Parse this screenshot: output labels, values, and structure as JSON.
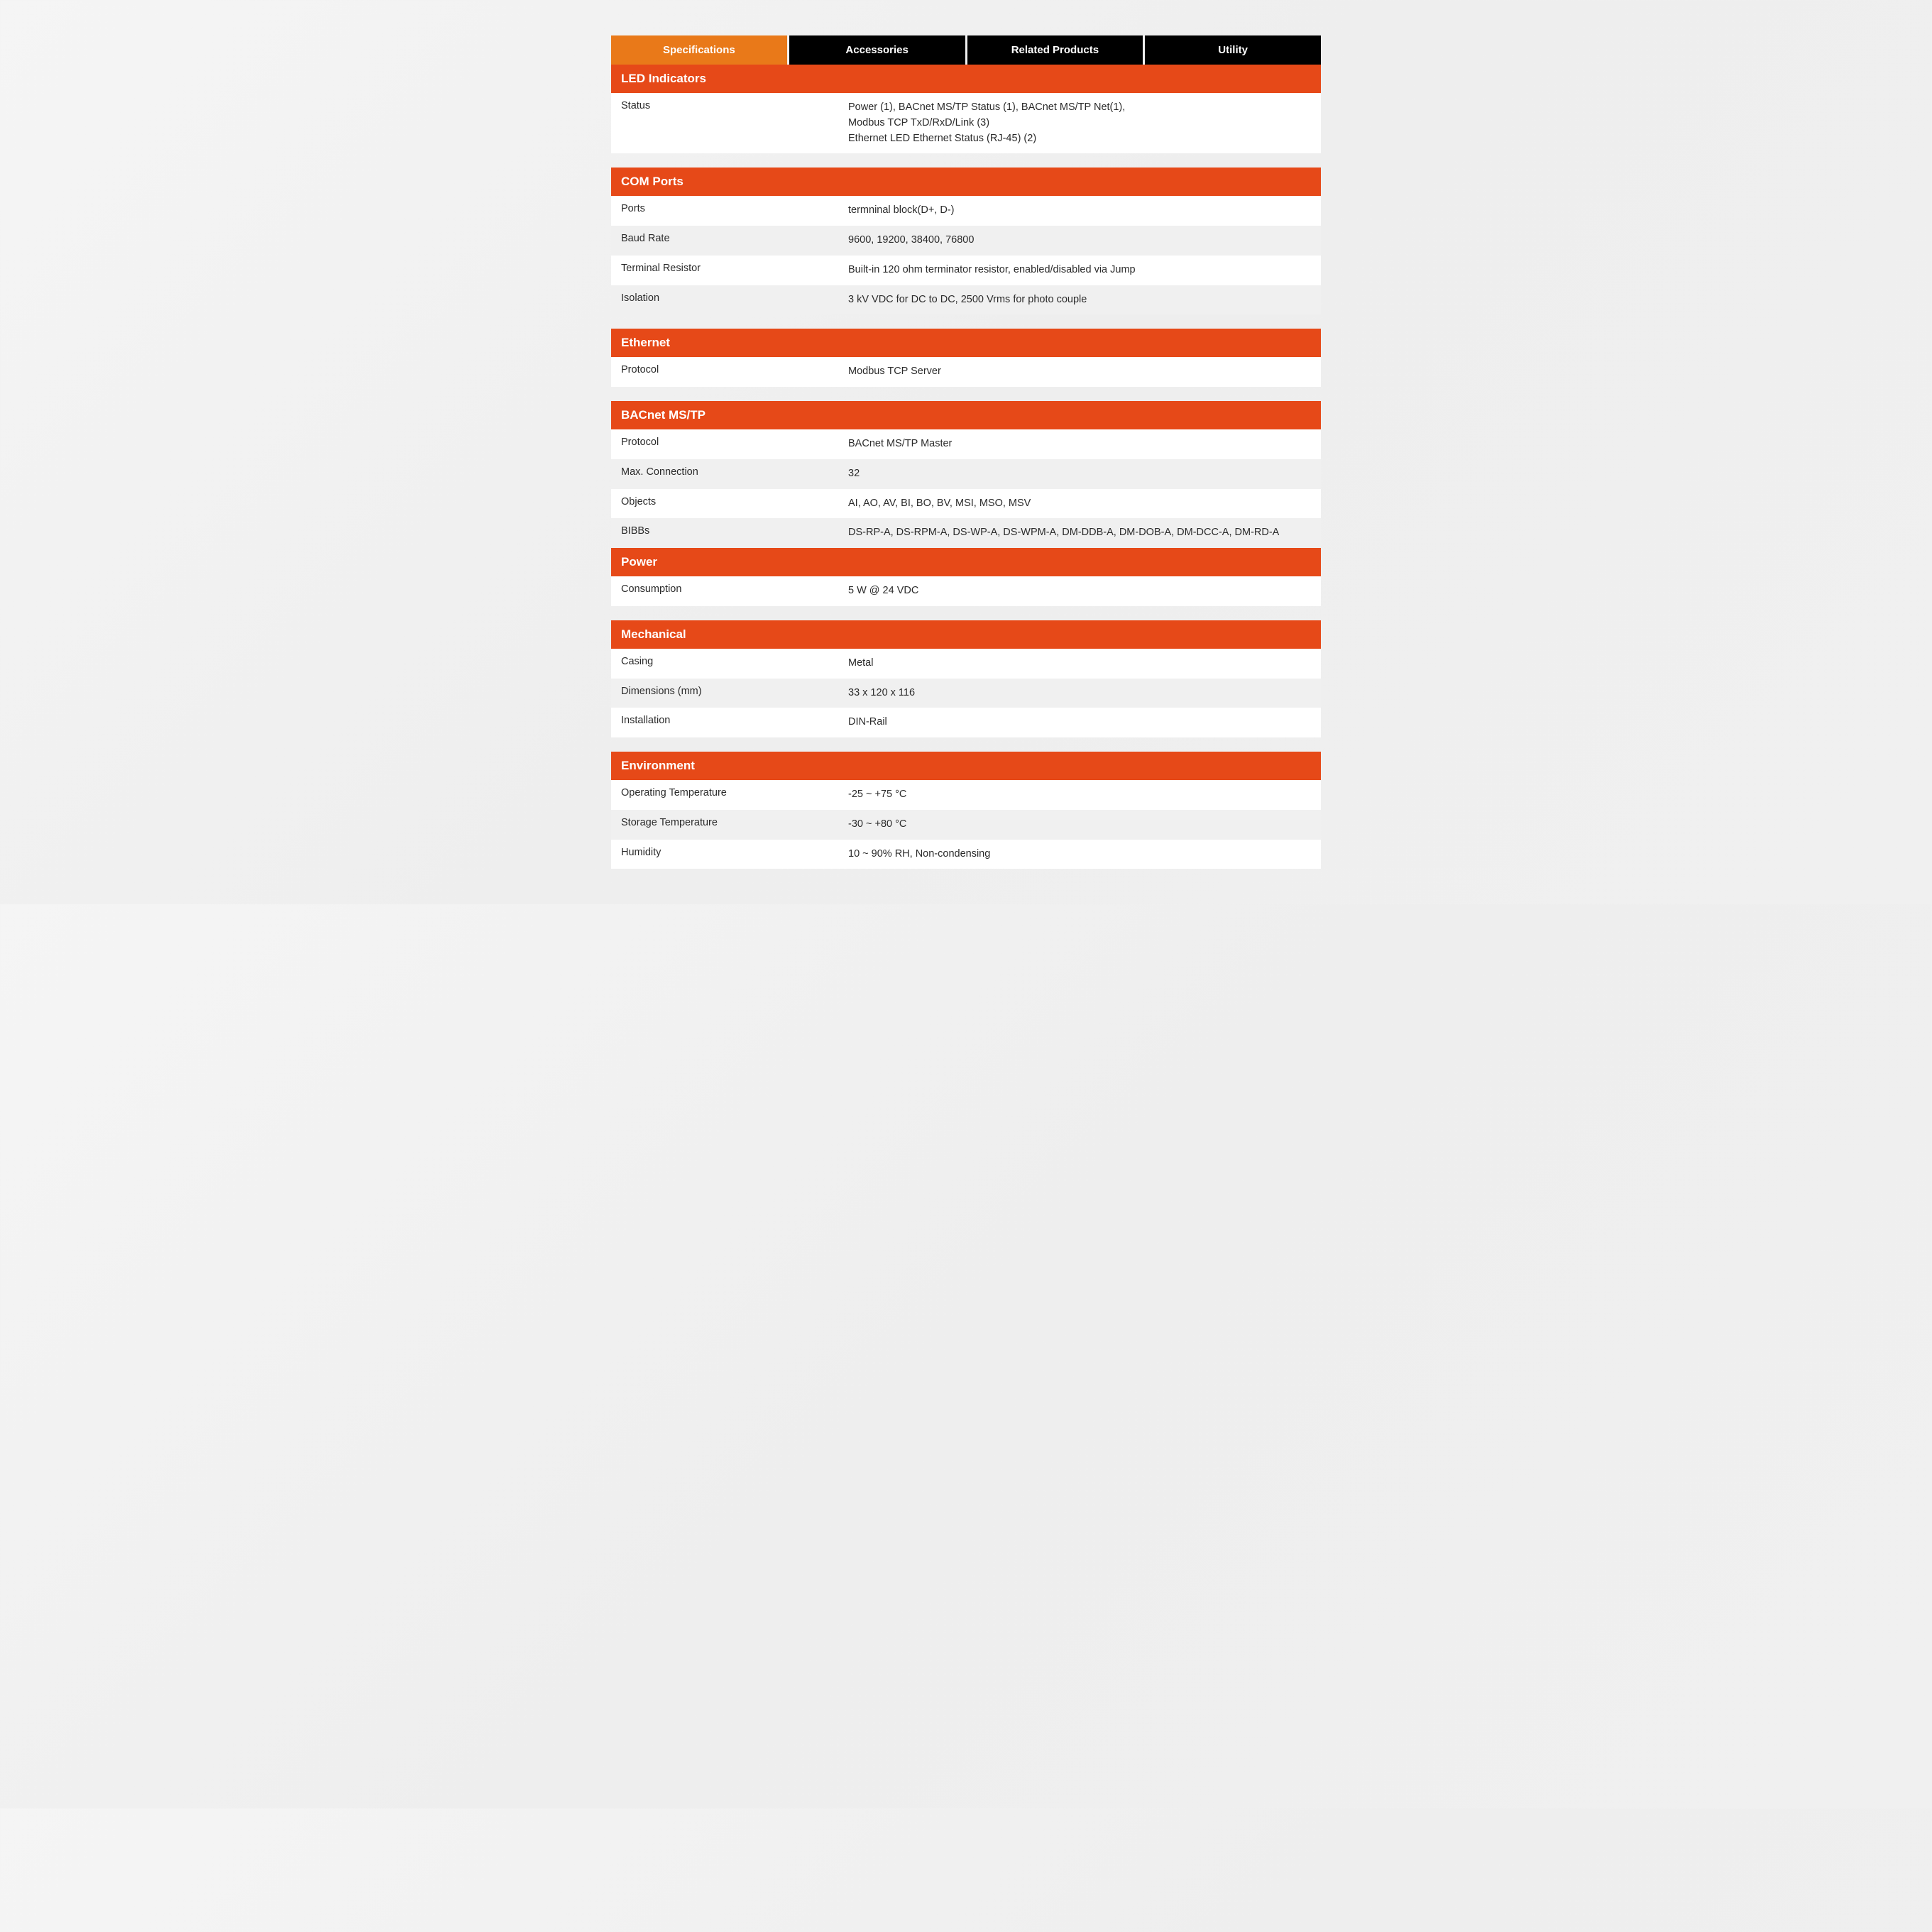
{
  "colors": {
    "tab_active": "#e97919",
    "tab_inactive": "#000000",
    "section_header": "#e64918",
    "row_white": "#ffffff",
    "row_gray": "#f0f0f0",
    "text": "#2b2b2b",
    "tab_text": "#ffffff"
  },
  "tabs": [
    {
      "label": "Specifications",
      "active": true
    },
    {
      "label": "Accessories",
      "active": false
    },
    {
      "label": "Related Products",
      "active": false
    },
    {
      "label": "Utility",
      "active": false
    }
  ],
  "sections": [
    {
      "title": "LED Indicators",
      "gap_after": true,
      "rows": [
        {
          "label": "Status",
          "value": "Power (1), BACnet MS/TP Status (1), BACnet MS/TP Net(1),\nModbus TCP TxD/RxD/Link (3)\nEthernet LED Ethernet Status (RJ-45) (2)",
          "bg": "white"
        }
      ]
    },
    {
      "title": "COM Ports",
      "gap_after": true,
      "rows": [
        {
          "label": "Ports",
          "value": "termninal block(D+, D-)",
          "bg": "white"
        },
        {
          "label": "Baud Rate",
          "value": "9600, 19200, 38400, 76800",
          "bg": "gray"
        },
        {
          "label": "Terminal Resistor",
          "value": "Built-in 120 ohm terminator resistor, enabled/disabled via Jump",
          "bg": "white"
        },
        {
          "label": "Isolation",
          "value": "3 kV VDC for DC to DC, 2500 Vrms for photo couple",
          "bg": "gray"
        }
      ]
    },
    {
      "title": "Ethernet",
      "gap_after": true,
      "rows": [
        {
          "label": "Protocol",
          "value": "Modbus TCP Server",
          "bg": "white"
        }
      ]
    },
    {
      "title": "BACnet MS/TP",
      "gap_after": false,
      "rows": [
        {
          "label": "Protocol",
          "value": "BACnet MS/TP Master",
          "bg": "white"
        },
        {
          "label": "Max. Connection",
          "value": "32",
          "bg": "gray"
        },
        {
          "label": "Objects",
          "value": "AI, AO, AV, BI, BO, BV, MSI, MSO, MSV",
          "bg": "white"
        },
        {
          "label": "BIBBs",
          "value": "DS-RP-A, DS-RPM-A, DS-WP-A, DS-WPM-A, DM-DDB-A, DM-DOB-A, DM-DCC-A, DM-RD-A",
          "bg": "gray"
        }
      ]
    },
    {
      "title": "Power",
      "gap_after": true,
      "rows": [
        {
          "label": "Consumption",
          "value": " 5 W @ 24 VDC",
          "bg": "white"
        }
      ]
    },
    {
      "title": "Mechanical",
      "gap_after": true,
      "rows": [
        {
          "label": "Casing",
          "value": "Metal",
          "bg": "white"
        },
        {
          "label": "Dimensions (mm)",
          "value": "33 x 120 x 116",
          "bg": "gray"
        },
        {
          "label": "Installation",
          "value": "DIN-Rail",
          "bg": "white"
        }
      ]
    },
    {
      "title": "Environment",
      "gap_after": false,
      "rows": [
        {
          "label": "Operating Temperature",
          "value": "-25 ~ +75 °C",
          "bg": "white"
        },
        {
          "label": "Storage Temperature",
          "value": "-30 ~ +80 °C",
          "bg": "gray"
        },
        {
          "label": "Humidity",
          "value": "10 ~ 90% RH, Non-condensing",
          "bg": "white"
        }
      ]
    }
  ]
}
